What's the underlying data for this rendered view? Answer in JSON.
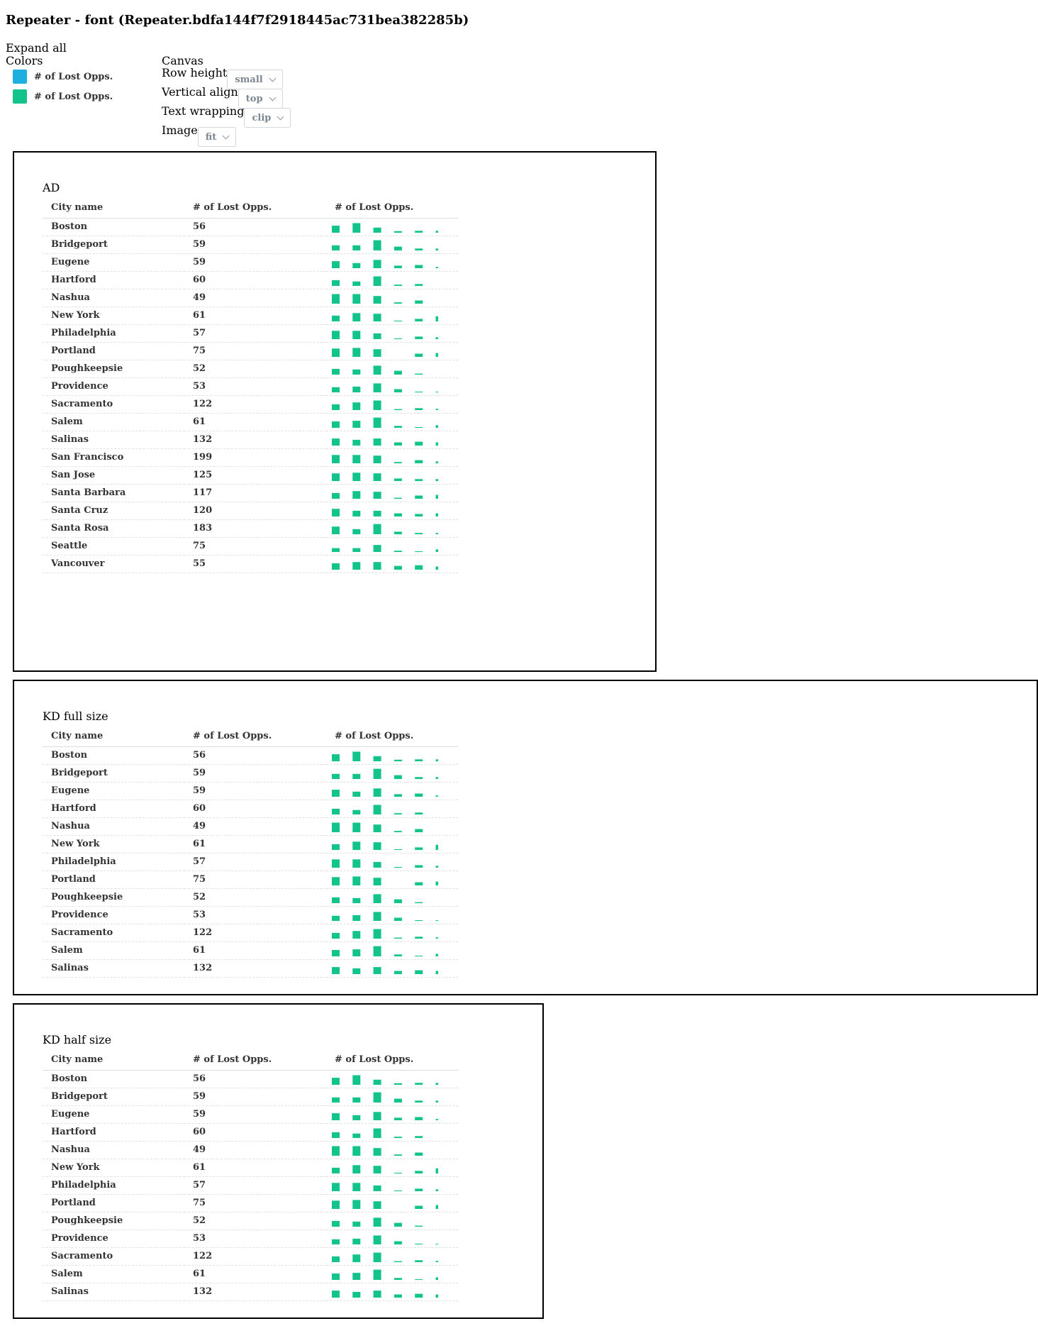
{
  "page": {
    "title": "Repeater - font (Repeater.bdfa144f7f2918445ac731bea382285b)"
  },
  "controls": {
    "expand_all": "Expand all",
    "colors_label": "Colors",
    "legend": [
      {
        "label": "# of Lost Opps.",
        "color": "#1db0de"
      },
      {
        "label": "# of Lost Opps.",
        "color": "#12c48b"
      }
    ],
    "canvas": {
      "label": "Canvas",
      "row_height": {
        "label": "Row height",
        "value": "small"
      },
      "vertical_align": {
        "label": "Vertical align",
        "value": "top"
      },
      "text_wrapping": {
        "label": "Text wrapping",
        "value": "clip"
      },
      "image": {
        "label": "Image",
        "value": "fit"
      }
    }
  },
  "table": {
    "headers": [
      "City name",
      "# of Lost Opps.",
      "# of Lost Opps."
    ],
    "bar_color": "#12c48b",
    "rows": [
      {
        "city": "Boston",
        "value": "56",
        "spark": [
          0.55,
          0.75,
          0.4,
          0.12,
          0.15,
          0.15
        ]
      },
      {
        "city": "Bridgeport",
        "value": "59",
        "spark": [
          0.4,
          0.4,
          0.8,
          0.3,
          0.15,
          0.15
        ]
      },
      {
        "city": "Eugene",
        "value": "59",
        "spark": [
          0.55,
          0.4,
          0.65,
          0.2,
          0.25,
          0.1
        ]
      },
      {
        "city": "Hartford",
        "value": "60",
        "spark": [
          0.45,
          0.35,
          0.75,
          0.1,
          0.15,
          0.0
        ]
      },
      {
        "city": "Nashua",
        "value": "49",
        "spark": [
          0.75,
          0.75,
          0.6,
          0.1,
          0.25,
          0.0
        ]
      },
      {
        "city": "New York",
        "value": "61",
        "spark": [
          0.45,
          0.65,
          0.6,
          0.05,
          0.2,
          0.4
        ]
      },
      {
        "city": "Philadelphia",
        "value": "57",
        "spark": [
          0.65,
          0.65,
          0.45,
          0.05,
          0.2,
          0.15
        ]
      },
      {
        "city": "Portland",
        "value": "75",
        "spark": [
          0.65,
          0.7,
          0.6,
          0.0,
          0.25,
          0.3
        ]
      },
      {
        "city": "Poughkeepsie",
        "value": "52",
        "spark": [
          0.45,
          0.4,
          0.7,
          0.3,
          0.08,
          0.0
        ]
      },
      {
        "city": "Providence",
        "value": "53",
        "spark": [
          0.4,
          0.45,
          0.7,
          0.25,
          0.05,
          0.05
        ]
      },
      {
        "city": "Sacramento",
        "value": "122",
        "spark": [
          0.45,
          0.6,
          0.75,
          0.08,
          0.15,
          0.1
        ]
      },
      {
        "city": "Salem",
        "value": "61",
        "spark": [
          0.5,
          0.55,
          0.8,
          0.15,
          0.05,
          0.2
        ]
      },
      {
        "city": "Salinas",
        "value": "132",
        "spark": [
          0.55,
          0.45,
          0.55,
          0.25,
          0.3,
          0.25
        ]
      },
      {
        "city": "San Francisco",
        "value": "199",
        "spark": [
          0.65,
          0.65,
          0.6,
          0.1,
          0.25,
          0.15
        ]
      },
      {
        "city": "San Jose",
        "value": "125",
        "spark": [
          0.6,
          0.65,
          0.6,
          0.2,
          0.15,
          0.15
        ]
      },
      {
        "city": "Santa Barbara",
        "value": "117",
        "spark": [
          0.45,
          0.6,
          0.55,
          0.08,
          0.25,
          0.3
        ]
      },
      {
        "city": "Santa Cruz",
        "value": "120",
        "spark": [
          0.6,
          0.45,
          0.45,
          0.25,
          0.2,
          0.25
        ]
      },
      {
        "city": "Santa Rosa",
        "value": "183",
        "spark": [
          0.6,
          0.4,
          0.8,
          0.2,
          0.1,
          0.1
        ]
      },
      {
        "city": "Seattle",
        "value": "75",
        "spark": [
          0.3,
          0.3,
          0.55,
          0.1,
          0.05,
          0.2
        ]
      },
      {
        "city": "Vancouver",
        "value": "55",
        "spark": [
          0.5,
          0.6,
          0.6,
          0.3,
          0.35,
          0.25
        ]
      }
    ]
  },
  "frames": [
    {
      "title": "AD",
      "row_count": 20
    },
    {
      "title": "KD full size",
      "row_count": 13
    },
    {
      "title": "KD half size",
      "row_count": 13
    }
  ]
}
